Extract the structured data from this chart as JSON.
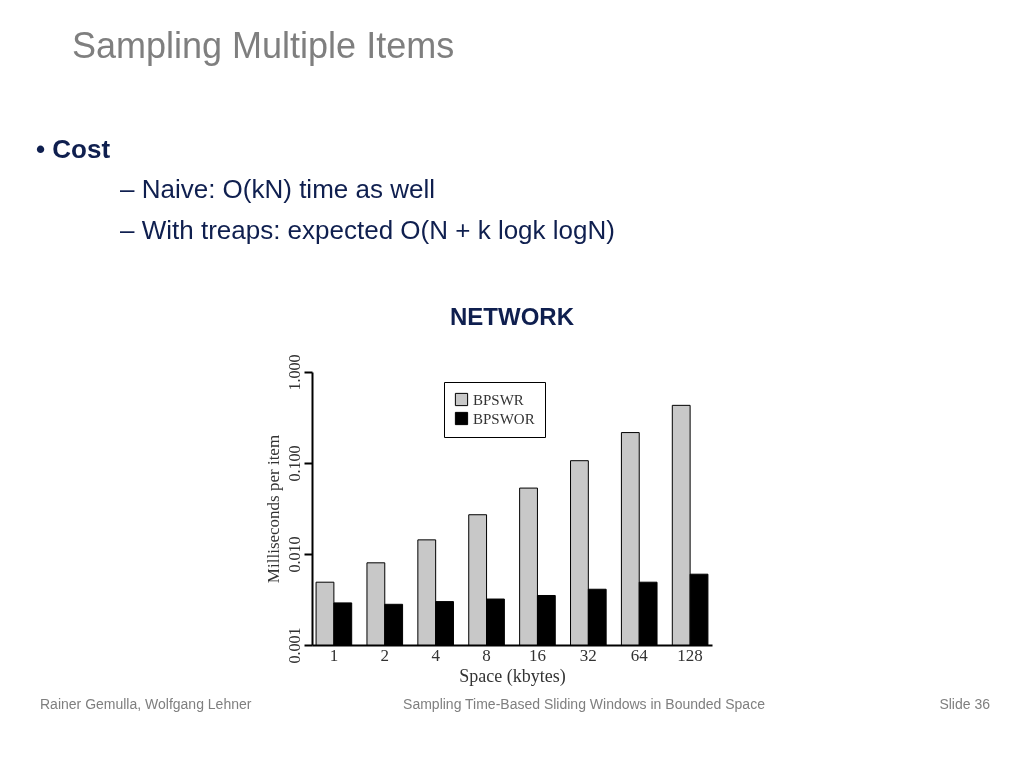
{
  "chart_data": {
    "type": "bar",
    "title": "NETWORK",
    "annotations": [
      "Sampling Multiple Items",
      "• Cost",
      "– Naive: O(kN) time as well",
      "– With treaps: expected O(N + k logk logN)",
      "Rainer Gemulla, Wolfgang Lehner",
      "Sampling Time-Based Sliding Windows in Bounded Space",
      "Slide  36"
    ],
    "xlabel": "Space (kbytes)",
    "ylabel": "Milliseconds per item",
    "categories": [
      "1",
      "2",
      "4",
      "8",
      "16",
      "32",
      "64",
      "128"
    ],
    "series": [
      {
        "name": "BPSWR",
        "color": "#c8c8c8",
        "values": [
          0.0049,
          0.008,
          0.0143,
          0.027,
          0.053,
          0.106,
          0.216,
          0.43
        ]
      },
      {
        "name": "BPSWOR",
        "color": "#000000",
        "values": [
          0.0029,
          0.0028,
          0.003,
          0.0032,
          0.0035,
          0.0041,
          0.0049,
          0.006
        ]
      }
    ],
    "log": true,
    "ylim": [
      0.001,
      1
    ],
    "yticks": [
      {
        "value": 0.001,
        "label": "0.001"
      },
      {
        "value": 0.01,
        "label": "0.010"
      },
      {
        "value": 0.1,
        "label": "0.100"
      },
      {
        "value": 1,
        "label": "1.000"
      }
    ],
    "grid": false,
    "legend": "top"
  }
}
